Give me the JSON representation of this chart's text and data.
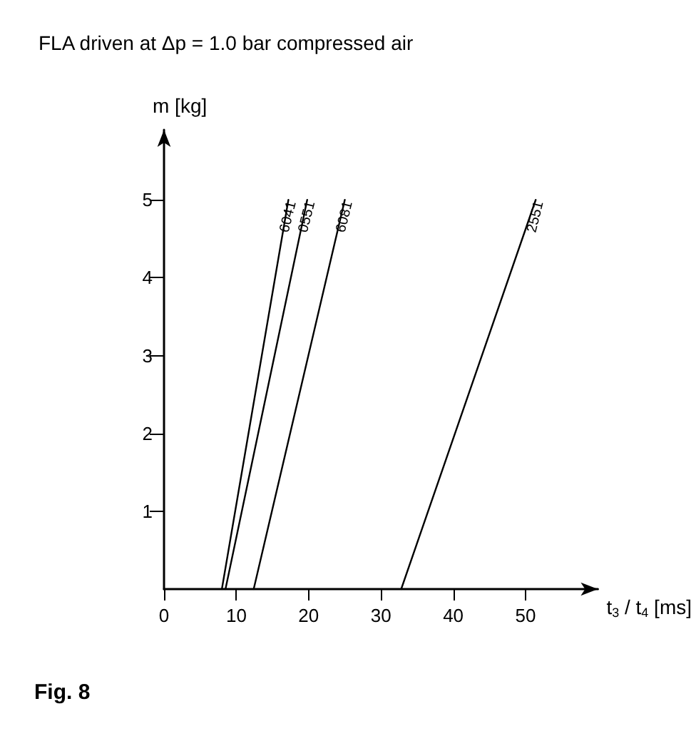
{
  "chart_data": {
    "type": "line",
    "title": "FLA driven at Δp = 1.0 bar compressed air",
    "xlabel": "t$_{3}$ / t$_{4}$ [ms]",
    "ylabel": "m [kg]",
    "annotations": [
      "Fig. 8"
    ],
    "xlim": [
      0,
      60
    ],
    "xticks": [
      0,
      10,
      20,
      30,
      40,
      50
    ],
    "ylim": [
      0,
      5.9
    ],
    "yticks": [
      1,
      2,
      3,
      4,
      5
    ],
    "grid": false,
    "legend": false,
    "marker": "none",
    "line_style": "solid",
    "series": [
      {
        "name": "6041",
        "color": "#000000",
        "x": [
          8,
          17.2
        ],
        "values": [
          0,
          5
        ]
      },
      {
        "name": "0551",
        "color": "#000000",
        "x": [
          8.5,
          19.8
        ],
        "values": [
          0,
          5
        ]
      },
      {
        "name": "6081",
        "color": "#000000",
        "x": [
          12.4,
          25
        ],
        "values": [
          0,
          5
        ]
      },
      {
        "name": "2551",
        "color": "#000000",
        "x": [
          32.8,
          51.4
        ],
        "values": [
          0,
          5
        ]
      }
    ]
  }
}
